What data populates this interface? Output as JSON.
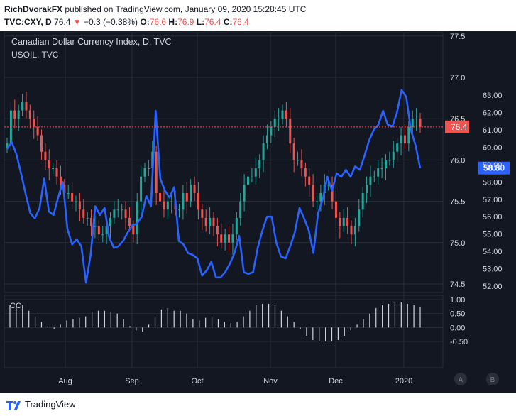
{
  "header": {
    "author": "RichDvorakFX",
    "published_text": " published on TradingView.com, January 09, 2020 15:28:45 UTC",
    "symbol": "TVC:CXY, D",
    "last": "76.4",
    "change_arrow": "▼",
    "change": "−0.3 (−0.38%)",
    "o_label": "O:",
    "o_val": "76.6",
    "h_label": "H:",
    "h_val": "76.9",
    "l_label": "L:",
    "l_val": "76.4",
    "c_label": "C:",
    "c_val": "76.4"
  },
  "legend": {
    "title": "Canadian Dollar Currency Index, D, TVC",
    "subtitle": "USOIL, TVC"
  },
  "oscillator": {
    "label": "CC"
  },
  "footer": {
    "brand": "TradingView"
  },
  "colors": {
    "background": "#131722",
    "grid": "#2a2e39",
    "up": "#26a69a",
    "down": "#ef5350",
    "oil_line": "#2962ff",
    "cc_bars": "#d1d4dc",
    "text": "#d1d4dc"
  },
  "chart_data": [
    {
      "type": "candlestick",
      "title": "Canadian Dollar Currency Index, D, TVC",
      "ylim": [
        74.4,
        77.6
      ],
      "y_ticks_left": [
        "77.5",
        "77.0",
        "76.5",
        "76.0",
        "75.5",
        "75.0",
        "74.5"
      ],
      "y_ticks_right": [
        "63.00",
        "62.00",
        "61.00",
        "60.00",
        "59.00",
        "58.00",
        "57.00",
        "56.00",
        "55.00",
        "54.00",
        "53.00",
        "52.00"
      ],
      "x_labels": [
        "Aug",
        "Sep",
        "Oct",
        "Nov",
        "Dec",
        "2020"
      ],
      "last_price_label": "76.4",
      "series": [
        {
          "name": "CXY close (approx.)",
          "values": [
            76.2,
            76.6,
            76.5,
            76.6,
            76.7,
            76.6,
            76.5,
            76.4,
            76.3,
            76.1,
            76.0,
            75.9,
            75.9,
            75.8,
            75.7,
            75.6,
            75.6,
            75.5,
            75.5,
            75.4,
            75.3,
            75.3,
            75.2,
            75.2,
            75.1,
            75.1,
            75.2,
            75.3,
            75.4,
            75.4,
            75.4,
            75.3,
            75.2,
            75.1,
            75.5,
            75.8,
            75.9,
            75.9,
            76.1,
            75.6,
            75.5,
            75.4,
            75.5,
            75.5,
            75.4,
            75.4,
            75.6,
            75.5,
            75.7,
            75.6,
            75.4,
            75.3,
            75.2,
            75.3,
            75.2,
            75.1,
            75.0,
            75.1,
            75.0,
            75.1,
            75.3,
            75.5,
            75.7,
            75.8,
            75.8,
            75.9,
            76.0,
            76.2,
            76.3,
            76.4,
            76.5,
            76.5,
            76.6,
            76.5,
            76.2,
            76.0,
            76.0,
            75.9,
            75.8,
            75.7,
            75.5,
            75.5,
            75.6,
            75.7,
            75.7,
            75.5,
            75.3,
            75.2,
            75.3,
            75.2,
            75.1,
            75.2,
            75.4,
            75.6,
            75.7,
            75.8,
            75.8,
            75.9,
            75.9,
            76.0,
            76.0,
            76.1,
            76.2,
            76.3,
            76.2,
            76.4,
            76.5,
            76.5,
            76.4
          ]
        },
        {
          "name": "USOIL (approx.)",
          "values": [
            59.9,
            60.3,
            59.6,
            58.5,
            57.3,
            56.2,
            55.9,
            56.5,
            58.2,
            56.3,
            56.1,
            57.1,
            58.0,
            55.3,
            54.4,
            54.7,
            54.3,
            52.2,
            53.8,
            56.6,
            56.1,
            56.5,
            54.8,
            54.2,
            54.3,
            54.6,
            55.1,
            55.5,
            55.6,
            56.0,
            57.2,
            56.6,
            62.1,
            58.2,
            57.5,
            57.1,
            57.7,
            54.6,
            54.4,
            53.9,
            53.8,
            53.6,
            52.6,
            52.9,
            53.4,
            52.5,
            52.5,
            52.8,
            53.3,
            53.9,
            54.9,
            52.8,
            52.7,
            52.8,
            54.2,
            55.2,
            56.0,
            56.0,
            54.5,
            53.7,
            53.6,
            54.3,
            55.1,
            56.5,
            55.9,
            55.2,
            53.9,
            56.2,
            57.0,
            58.3,
            57.5,
            58.5,
            58.3,
            58.7,
            58.3,
            58.9,
            58.7,
            59.5,
            60.4,
            61.0,
            61.3,
            62.1,
            61.3,
            61.2,
            62.0,
            63.3,
            62.9,
            61.0,
            60.1,
            58.8
          ]
        },
        {
          "name": "CC oscillator (approx.)",
          "values": [
            0.8,
            0.85,
            0.8,
            0.6,
            0.4,
            0.2,
            0.05,
            -0.05,
            0.1,
            0.25,
            0.3,
            0.35,
            0.4,
            0.55,
            0.6,
            0.6,
            0.55,
            0.5,
            0.3,
            0.05,
            -0.1,
            -0.15,
            0.1,
            0.4,
            0.65,
            0.7,
            0.6,
            0.6,
            0.5,
            0.3,
            0.25,
            0.35,
            0.4,
            0.3,
            0.2,
            0.15,
            0.2,
            0.4,
            0.6,
            0.8,
            0.85,
            0.85,
            0.8,
            0.6,
            0.4,
            0.2,
            -0.05,
            -0.3,
            -0.45,
            -0.5,
            -0.5,
            -0.5,
            -0.45,
            -0.3,
            -0.1,
            0.1,
            0.3,
            0.5,
            0.7,
            0.8,
            0.85,
            0.9,
            0.9,
            0.85,
            0.8,
            0.75
          ]
        }
      ]
    }
  ]
}
